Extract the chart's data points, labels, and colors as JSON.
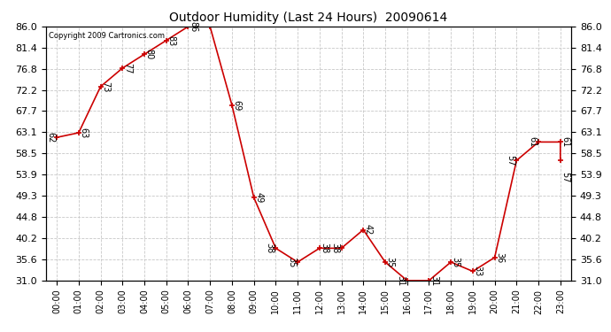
{
  "title": "Outdoor Humidity (Last 24 Hours)  20090614",
  "copyright": "Copyright 2009 Cartronics.com",
  "hours_labels": [
    "00:00",
    "01:00",
    "02:00",
    "03:00",
    "04:00",
    "05:00",
    "06:00",
    "07:00",
    "08:00",
    "09:00",
    "10:00",
    "11:00",
    "12:00",
    "13:00",
    "14:00",
    "15:00",
    "16:00",
    "17:00",
    "18:00",
    "19:00",
    "20:00",
    "21:00",
    "22:00",
    "23:00"
  ],
  "ylim_min": 31.0,
  "ylim_max": 86.0,
  "yticks": [
    31.0,
    35.6,
    40.2,
    44.8,
    49.3,
    53.9,
    58.5,
    63.1,
    67.7,
    72.2,
    76.8,
    81.4,
    86.0
  ],
  "line_color": "#cc0000",
  "marker_color": "#cc0000",
  "bg_color": "#ffffff",
  "grid_color": "#c8c8c8",
  "title_color": "#000000",
  "plot_points": [
    [
      0,
      62
    ],
    [
      1,
      63
    ],
    [
      2,
      73
    ],
    [
      3,
      77
    ],
    [
      4,
      80
    ],
    [
      5,
      83
    ],
    [
      6,
      86
    ],
    [
      7,
      86
    ],
    [
      8,
      69
    ],
    [
      9,
      49
    ],
    [
      10,
      38
    ],
    [
      11,
      35
    ],
    [
      12,
      38
    ],
    [
      13,
      38
    ],
    [
      14,
      42
    ],
    [
      15,
      35
    ],
    [
      16,
      31
    ],
    [
      17,
      31
    ],
    [
      18,
      35
    ],
    [
      19,
      33
    ],
    [
      20,
      36
    ],
    [
      21,
      57
    ],
    [
      22,
      61
    ],
    [
      23,
      61
    ],
    [
      23,
      57
    ]
  ],
  "labels": [
    [
      0,
      62,
      "62",
      -5,
      0
    ],
    [
      1,
      63,
      "63",
      4,
      0
    ],
    [
      2,
      73,
      "73",
      4,
      0
    ],
    [
      3,
      77,
      "77",
      4,
      0
    ],
    [
      4,
      80,
      "80",
      4,
      0
    ],
    [
      5,
      83,
      "83",
      4,
      0
    ],
    [
      6,
      86,
      "86",
      4,
      0
    ],
    [
      8,
      69,
      "69",
      4,
      0
    ],
    [
      9,
      49,
      "49",
      4,
      0
    ],
    [
      10,
      38,
      "38",
      -5,
      0
    ],
    [
      11,
      35,
      "35",
      -5,
      0
    ],
    [
      12,
      38,
      "38",
      4,
      0
    ],
    [
      13,
      38,
      "38",
      -5,
      0
    ],
    [
      14,
      42,
      "42",
      4,
      0
    ],
    [
      15,
      35,
      "35",
      4,
      0
    ],
    [
      16,
      31,
      "31",
      -5,
      0
    ],
    [
      17,
      31,
      "31",
      4,
      0
    ],
    [
      18,
      35,
      "35",
      4,
      0
    ],
    [
      19,
      33,
      "33",
      4,
      0
    ],
    [
      20,
      36,
      "36",
      4,
      0
    ],
    [
      21,
      57,
      "57",
      -5,
      0
    ],
    [
      22,
      61,
      "61",
      -5,
      0
    ],
    [
      23,
      61,
      "61",
      4,
      0
    ],
    [
      23,
      57,
      "57",
      4,
      -14
    ]
  ]
}
